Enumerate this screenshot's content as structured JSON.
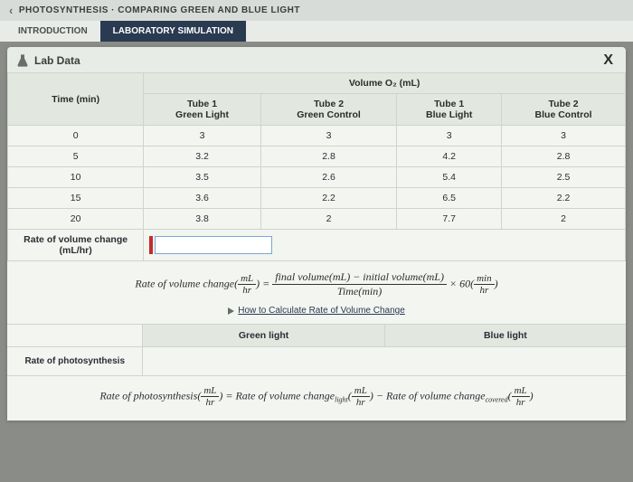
{
  "breadcrumb": "PHOTOSYNTHESIS · COMPARING GREEN AND BLUE LIGHT",
  "tabs": {
    "intro": "INTRODUCTION",
    "sim": "LABORATORY SIMULATION"
  },
  "panel_title": "Lab Data",
  "close_label": "X",
  "table": {
    "vol_header": "Volume O₂ (mL)",
    "time_header": "Time (min)",
    "cols": [
      "Tube 1\nGreen Light",
      "Tube 2\nGreen Control",
      "Tube 1\nBlue Light",
      "Tube 2\nBlue Control"
    ],
    "rows": [
      {
        "t": "0",
        "v": [
          "3",
          "3",
          "3",
          "3"
        ]
      },
      {
        "t": "5",
        "v": [
          "3.2",
          "2.8",
          "4.2",
          "2.8"
        ]
      },
      {
        "t": "10",
        "v": [
          "3.5",
          "2.6",
          "5.4",
          "2.5"
        ]
      },
      {
        "t": "15",
        "v": [
          "3.6",
          "2.2",
          "6.5",
          "2.2"
        ]
      },
      {
        "t": "20",
        "v": [
          "3.8",
          "2",
          "7.7",
          "2"
        ]
      }
    ],
    "rate_label": "Rate of volume change\n(mL/hr)",
    "rate_value": ""
  },
  "formula1": {
    "lhs": "Rate of volume change",
    "unit_num": "mL",
    "unit_den": "hr",
    "rhs_num": "final volume(mL) − initial volume(mL)",
    "rhs_den": "Time(min)",
    "mult": "× 60",
    "mult_num": "min",
    "mult_den": "hr"
  },
  "howto": "How to Calculate Rate of Volume Change",
  "subheaders": {
    "green": "Green light",
    "blue": "Blue light"
  },
  "photosynth_label": "Rate of photosynthesis",
  "formula2": {
    "lhs": "Rate of photosynthesis",
    "term1": "Rate of volume change",
    "sub1": "light",
    "term2": "Rate of volume change",
    "sub2": "covered",
    "unit_num": "mL",
    "unit_den": "hr"
  }
}
